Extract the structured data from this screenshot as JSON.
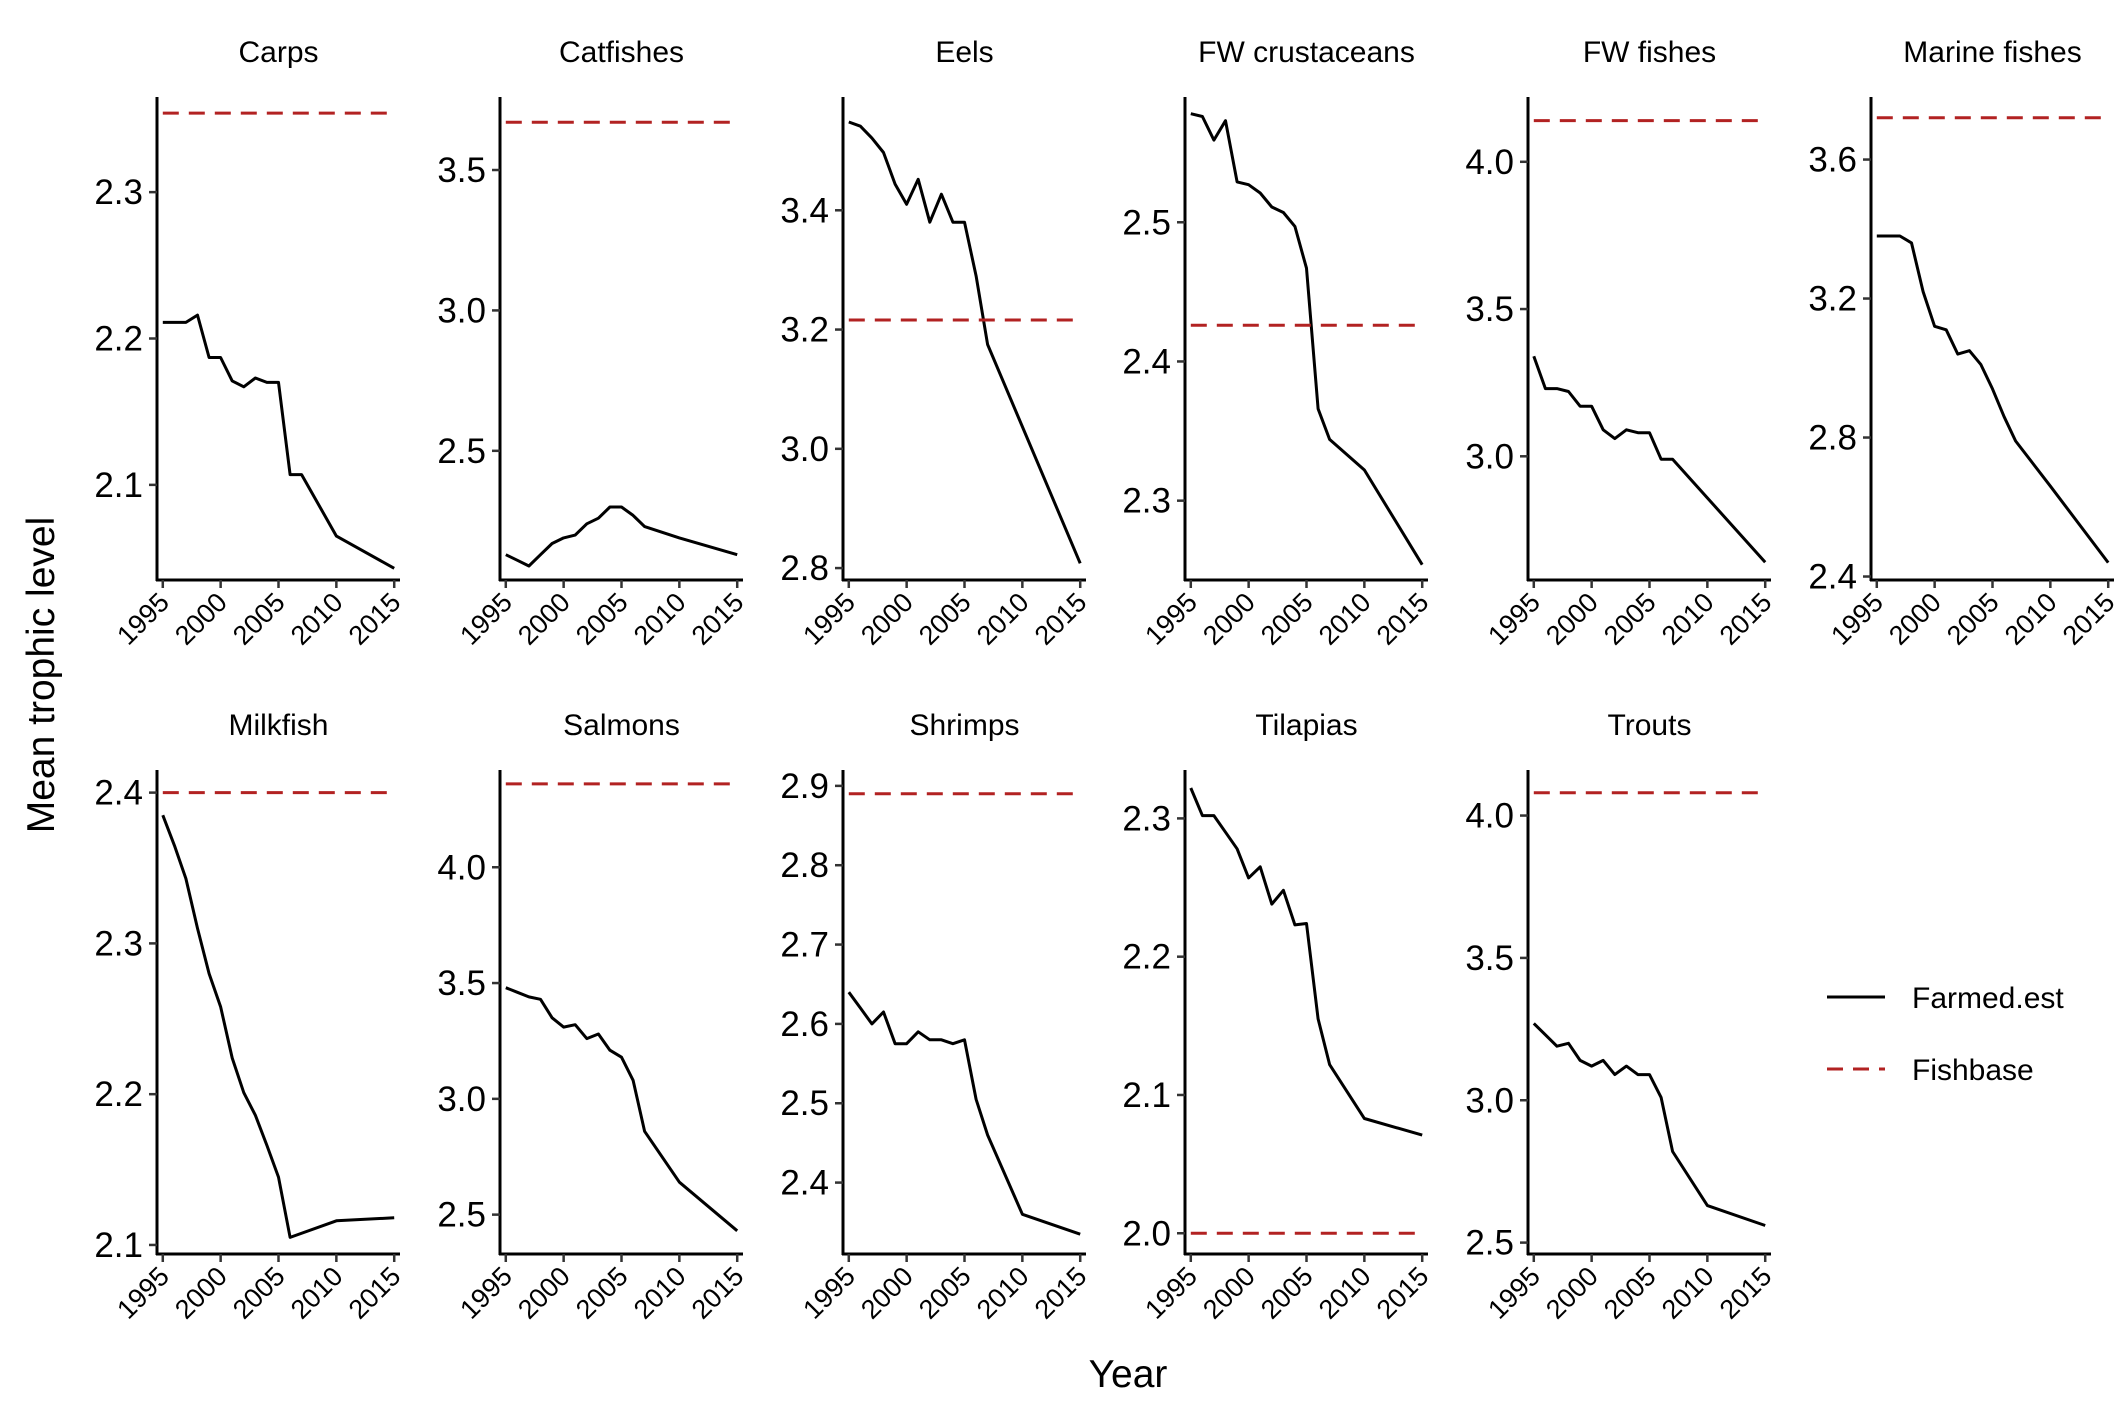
{
  "figure": {
    "xlabel": "Year",
    "ylabel": "Mean trophic level"
  },
  "legend": {
    "entries": [
      {
        "label": "Farmed.est",
        "color": "#000000",
        "dash": "solid"
      },
      {
        "label": "Fishbase",
        "color": "#b22222",
        "dash": "dashed"
      }
    ]
  },
  "chart_data": [
    {
      "type": "line",
      "title": "Carps",
      "xlim": [
        1994.5,
        2015.5
      ],
      "ylim": [
        2.035,
        2.365
      ],
      "x_ticks": [
        1995,
        2000,
        2005,
        2010,
        2015
      ],
      "y_ticks": [
        2.1,
        2.2,
        2.3
      ],
      "series": [
        {
          "name": "Farmed.est",
          "x": [
            1995,
            1996,
            1997,
            1998,
            1999,
            2000,
            2001,
            2002,
            2003,
            2004,
            2005,
            2006,
            2007,
            2010,
            2015
          ],
          "y": [
            2.211,
            2.211,
            2.211,
            2.216,
            2.187,
            2.187,
            2.171,
            2.167,
            2.173,
            2.17,
            2.17,
            2.107,
            2.107,
            2.065,
            2.043
          ]
        },
        {
          "name": "Fishbase",
          "x": [
            1995,
            2015
          ],
          "y": [
            2.354,
            2.354
          ]
        }
      ]
    },
    {
      "type": "line",
      "title": "Catfishes",
      "xlim": [
        1994.5,
        2015.5
      ],
      "ylim": [
        2.04,
        3.76
      ],
      "x_ticks": [
        1995,
        2000,
        2005,
        2010,
        2015
      ],
      "y_ticks": [
        2.5,
        3.0,
        3.5
      ],
      "series": [
        {
          "name": "Farmed.est",
          "x": [
            1995,
            1996,
            1997,
            1998,
            1999,
            2000,
            2001,
            2002,
            2003,
            2004,
            2005,
            2006,
            2007,
            2010,
            2015
          ],
          "y": [
            2.13,
            2.11,
            2.09,
            2.13,
            2.17,
            2.19,
            2.2,
            2.24,
            2.26,
            2.3,
            2.3,
            2.27,
            2.23,
            2.19,
            2.13
          ]
        },
        {
          "name": "Fishbase",
          "x": [
            1995,
            2015
          ],
          "y": [
            3.67,
            3.67
          ]
        }
      ]
    },
    {
      "type": "line",
      "title": "Eels",
      "xlim": [
        1994.5,
        2015.5
      ],
      "ylim": [
        2.78,
        3.59
      ],
      "x_ticks": [
        1995,
        2000,
        2005,
        2010,
        2015
      ],
      "y_ticks": [
        2.8,
        3.0,
        3.2,
        3.4
      ],
      "series": [
        {
          "name": "Farmed.est",
          "x": [
            1995,
            1996,
            1997,
            1998,
            1999,
            2000,
            2001,
            2002,
            2003,
            2004,
            2005,
            2006,
            2007,
            2015
          ],
          "y": [
            3.548,
            3.541,
            3.521,
            3.497,
            3.444,
            3.41,
            3.452,
            3.38,
            3.427,
            3.38,
            3.38,
            3.29,
            3.175,
            2.808
          ]
        },
        {
          "name": "Fishbase",
          "x": [
            1995,
            2015
          ],
          "y": [
            3.216,
            3.216
          ]
        }
      ]
    },
    {
      "type": "line",
      "title": "FW crustaceans",
      "xlim": [
        1994.5,
        2015.5
      ],
      "ylim": [
        2.243,
        2.59
      ],
      "x_ticks": [
        1995,
        2000,
        2005,
        2010,
        2015
      ],
      "y_ticks": [
        2.3,
        2.4,
        2.5
      ],
      "series": [
        {
          "name": "Farmed.est",
          "x": [
            1995,
            1996,
            1997,
            1998,
            1999,
            2000,
            2001,
            2002,
            2003,
            2004,
            2005,
            2006,
            2007,
            2010,
            2015
          ],
          "y": [
            2.578,
            2.576,
            2.559,
            2.573,
            2.529,
            2.527,
            2.521,
            2.511,
            2.507,
            2.497,
            2.467,
            2.366,
            2.344,
            2.322,
            2.254
          ]
        },
        {
          "name": "Fishbase",
          "x": [
            1995,
            2015
          ],
          "y": [
            2.426,
            2.426
          ]
        }
      ]
    },
    {
      "type": "line",
      "title": "FW fishes",
      "xlim": [
        1994.5,
        2015.5
      ],
      "ylim": [
        2.58,
        4.22
      ],
      "x_ticks": [
        1995,
        2000,
        2005,
        2010,
        2015
      ],
      "y_ticks": [
        3.0,
        3.5,
        4.0
      ],
      "series": [
        {
          "name": "Farmed.est",
          "x": [
            1995,
            1996,
            1997,
            1998,
            1999,
            2000,
            2001,
            2002,
            2003,
            2004,
            2005,
            2006,
            2007,
            2015
          ],
          "y": [
            3.34,
            3.23,
            3.23,
            3.22,
            3.17,
            3.17,
            3.09,
            3.06,
            3.09,
            3.08,
            3.08,
            2.99,
            2.99,
            2.64
          ]
        },
        {
          "name": "Fishbase",
          "x": [
            1995,
            2015
          ],
          "y": [
            4.14,
            4.14
          ]
        }
      ]
    },
    {
      "type": "line",
      "title": "Marine fishes",
      "xlim": [
        1994.5,
        2015.5
      ],
      "ylim": [
        2.39,
        3.78
      ],
      "x_ticks": [
        1995,
        2000,
        2005,
        2010,
        2015
      ],
      "y_ticks": [
        2.4,
        2.8,
        3.2,
        3.6
      ],
      "series": [
        {
          "name": "Farmed.est",
          "x": [
            1995,
            1996,
            1997,
            1998,
            1999,
            2000,
            2001,
            2002,
            2003,
            2004,
            2005,
            2006,
            2007,
            2010,
            2015
          ],
          "y": [
            3.38,
            3.38,
            3.38,
            3.36,
            3.22,
            3.12,
            3.11,
            3.04,
            3.05,
            3.01,
            2.94,
            2.86,
            2.79,
            2.66,
            2.44
          ]
        },
        {
          "name": "Fishbase",
          "x": [
            1995,
            2015
          ],
          "y": [
            3.72,
            3.72
          ]
        }
      ]
    },
    {
      "type": "line",
      "title": "Milkfish",
      "xlim": [
        1994.5,
        2015.5
      ],
      "ylim": [
        2.094,
        2.415
      ],
      "x_ticks": [
        1995,
        2000,
        2005,
        2010,
        2015
      ],
      "y_ticks": [
        2.1,
        2.2,
        2.3,
        2.4
      ],
      "series": [
        {
          "name": "Farmed.est",
          "x": [
            1995,
            1996,
            1997,
            1998,
            1999,
            2000,
            2001,
            2002,
            2003,
            2004,
            2005,
            2006,
            2010,
            2015
          ],
          "y": [
            2.385,
            2.365,
            2.343,
            2.31,
            2.28,
            2.258,
            2.224,
            2.201,
            2.186,
            2.166,
            2.145,
            2.105,
            2.116,
            2.118
          ]
        },
        {
          "name": "Fishbase",
          "x": [
            1995,
            2015
          ],
          "y": [
            2.4,
            2.4
          ]
        }
      ]
    },
    {
      "type": "line",
      "title": "Salmons",
      "xlim": [
        1994.5,
        2015.5
      ],
      "ylim": [
        2.33,
        4.42
      ],
      "x_ticks": [
        1995,
        2000,
        2005,
        2010,
        2015
      ],
      "y_ticks": [
        2.5,
        3.0,
        3.5,
        4.0
      ],
      "series": [
        {
          "name": "Farmed.est",
          "x": [
            1995,
            1996,
            1997,
            1998,
            1999,
            2000,
            2001,
            2002,
            2003,
            2004,
            2005,
            2006,
            2007,
            2010,
            2015
          ],
          "y": [
            3.48,
            3.46,
            3.44,
            3.43,
            3.35,
            3.31,
            3.32,
            3.26,
            3.28,
            3.21,
            3.18,
            3.08,
            2.86,
            2.64,
            2.43
          ]
        },
        {
          "name": "Fishbase",
          "x": [
            1995,
            2015
          ],
          "y": [
            4.36,
            4.36
          ]
        }
      ]
    },
    {
      "type": "line",
      "title": "Shrimps",
      "xlim": [
        1994.5,
        2015.5
      ],
      "ylim": [
        2.31,
        2.92
      ],
      "x_ticks": [
        1995,
        2000,
        2005,
        2010,
        2015
      ],
      "y_ticks": [
        2.4,
        2.5,
        2.6,
        2.7,
        2.8,
        2.9
      ],
      "series": [
        {
          "name": "Farmed.est",
          "x": [
            1995,
            1996,
            1997,
            1998,
            1999,
            2000,
            2001,
            2002,
            2003,
            2004,
            2005,
            2006,
            2007,
            2010,
            2015
          ],
          "y": [
            2.64,
            2.62,
            2.6,
            2.615,
            2.575,
            2.575,
            2.59,
            2.58,
            2.58,
            2.575,
            2.58,
            2.505,
            2.46,
            2.36,
            2.335
          ]
        },
        {
          "name": "Fishbase",
          "x": [
            1995,
            2015
          ],
          "y": [
            2.89,
            2.89
          ]
        }
      ]
    },
    {
      "type": "line",
      "title": "Tilapias",
      "xlim": [
        1994.5,
        2015.5
      ],
      "ylim": [
        1.985,
        2.335
      ],
      "x_ticks": [
        1995,
        2000,
        2005,
        2010,
        2015
      ],
      "y_ticks": [
        2.0,
        2.1,
        2.2,
        2.3
      ],
      "series": [
        {
          "name": "Farmed.est",
          "x": [
            1995,
            1996,
            1997,
            1998,
            1999,
            2000,
            2001,
            2002,
            2003,
            2004,
            2005,
            2006,
            2007,
            2010,
            2015
          ],
          "y": [
            2.322,
            2.302,
            2.302,
            2.29,
            2.278,
            2.257,
            2.265,
            2.238,
            2.248,
            2.223,
            2.224,
            2.155,
            2.122,
            2.083,
            2.071
          ]
        },
        {
          "name": "Fishbase",
          "x": [
            1995,
            2015
          ],
          "y": [
            2.0,
            2.0
          ]
        }
      ]
    },
    {
      "type": "line",
      "title": "Trouts",
      "xlim": [
        1994.5,
        2015.5
      ],
      "ylim": [
        2.46,
        4.16
      ],
      "x_ticks": [
        1995,
        2000,
        2005,
        2010,
        2015
      ],
      "y_ticks": [
        2.5,
        3.0,
        3.5,
        4.0
      ],
      "series": [
        {
          "name": "Farmed.est",
          "x": [
            1995,
            1996,
            1997,
            1998,
            1999,
            2000,
            2001,
            2002,
            2003,
            2004,
            2005,
            2006,
            2007,
            2010,
            2015
          ],
          "y": [
            3.27,
            3.23,
            3.19,
            3.2,
            3.14,
            3.12,
            3.14,
            3.09,
            3.12,
            3.09,
            3.09,
            3.01,
            2.82,
            2.63,
            2.56
          ]
        },
        {
          "name": "Fishbase",
          "x": [
            1995,
            2015
          ],
          "y": [
            4.08,
            4.08
          ]
        }
      ]
    }
  ]
}
